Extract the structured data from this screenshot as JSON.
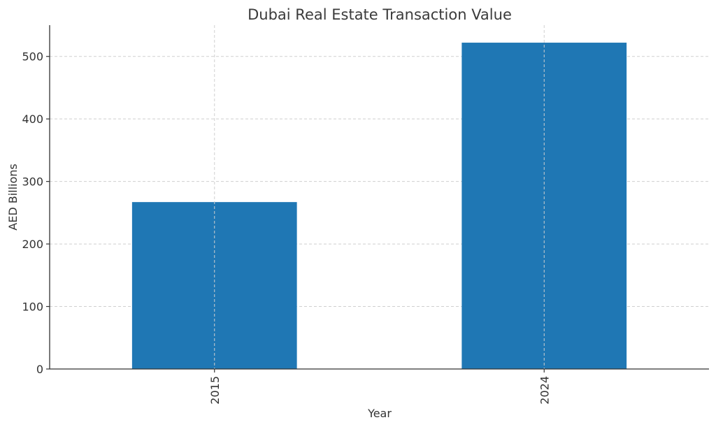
{
  "chart_data": {
    "type": "bar",
    "title": "Dubai Real Estate Transaction Value",
    "xlabel": "Year",
    "ylabel": "AED Billions",
    "categories": [
      "2015",
      "2024"
    ],
    "values": [
      267,
      522
    ],
    "ylim": [
      0,
      550
    ],
    "yticks": [
      0,
      100,
      200,
      300,
      400,
      500
    ],
    "grid": true,
    "legend": "none",
    "bar_color": "#1f77b4"
  }
}
